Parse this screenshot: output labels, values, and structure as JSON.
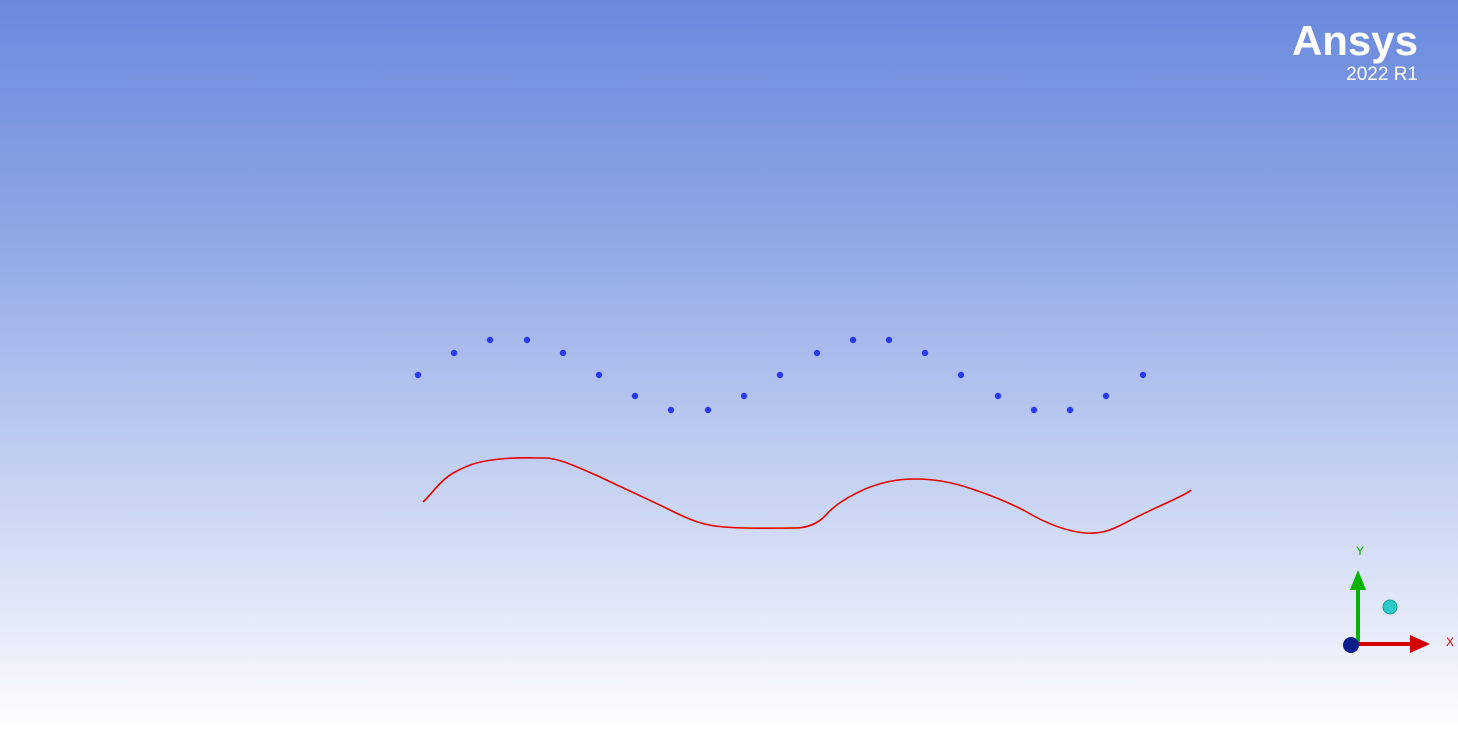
{
  "logo": {
    "brand": "Ansys",
    "version": "2022 R1"
  },
  "triad": {
    "x_label": "X",
    "y_label": "Y",
    "x_color": "#d40000",
    "y_color": "#00b400",
    "z_marker_color": "#2bc9c9",
    "origin_color": "#0a1b8c"
  },
  "colors": {
    "points": "#2a3af0",
    "curve": "#e60000",
    "background_top": "#6a89de",
    "background_bottom": "#ffffff"
  }
}
